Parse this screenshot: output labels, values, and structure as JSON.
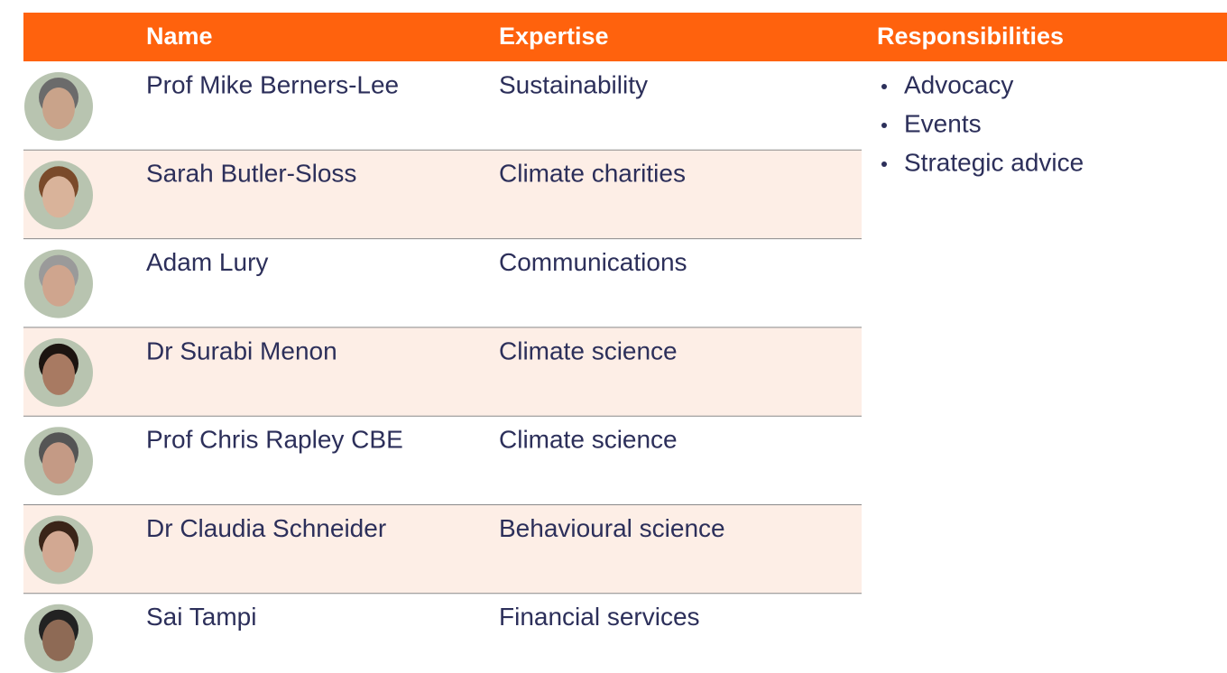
{
  "header": {
    "columns": [
      "Name",
      "Expertise",
      "Responsibilities"
    ]
  },
  "table": {
    "rows": [
      {
        "name": "Prof Mike Berners-Lee",
        "expertise": "Sustainability"
      },
      {
        "name": "Sarah Butler-Sloss",
        "expertise": "Climate charities"
      },
      {
        "name": "Adam Lury",
        "expertise": "Communications"
      },
      {
        "name": "Dr Surabi Menon",
        "expertise": "Climate science"
      },
      {
        "name": "Prof Chris Rapley CBE",
        "expertise": "Climate science"
      },
      {
        "name": "Dr Claudia Schneider",
        "expertise": "Behavioural science"
      },
      {
        "name": "Sai Tampi",
        "expertise": "Financial services"
      }
    ]
  },
  "responsibilities": [
    "Advocacy",
    "Events",
    "Strategic advice"
  ]
}
